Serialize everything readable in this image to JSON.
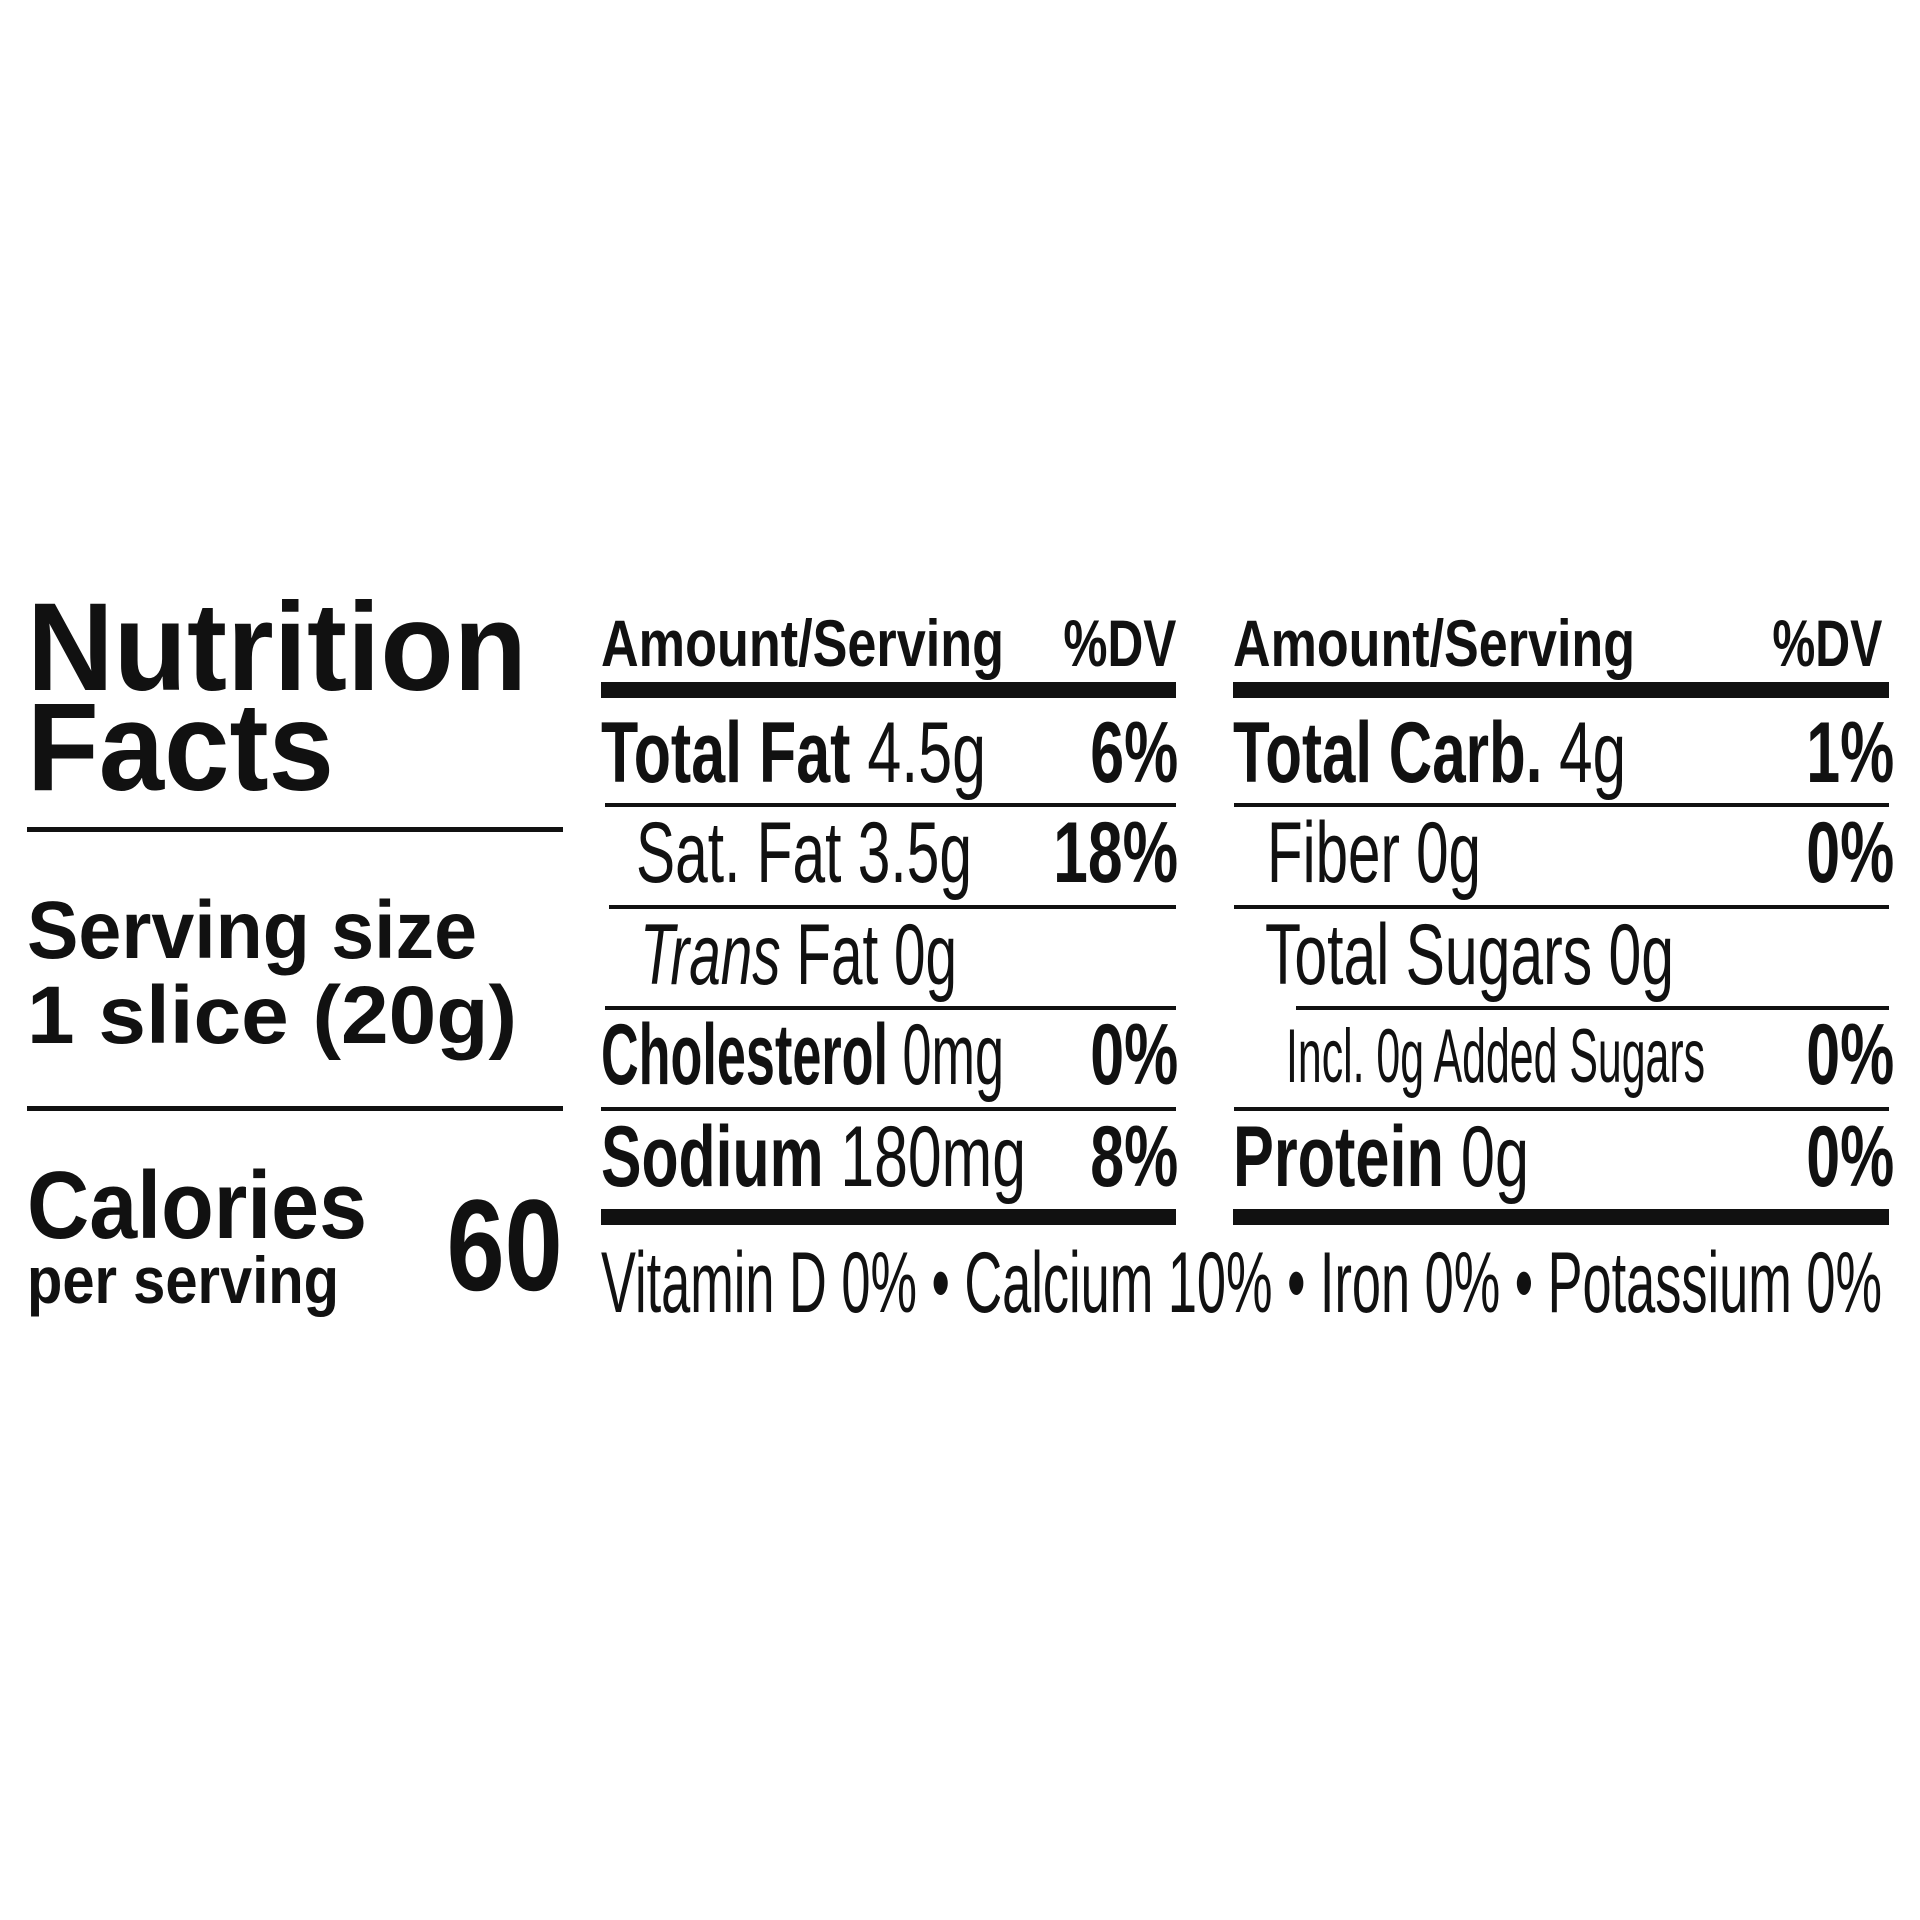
{
  "title": {
    "line1": "Nutrition",
    "line2": "Facts"
  },
  "serving": {
    "label": "Serving size",
    "value": "1 slice (20g)"
  },
  "calories": {
    "label": "Calories",
    "sublabel": "per serving",
    "value": "60"
  },
  "left_table": {
    "header": {
      "amount": "Amount/Serving",
      "dv": "%DV"
    },
    "rows": [
      {
        "name": "Total Fat",
        "amount": "4.5g",
        "dv": "6%"
      },
      {
        "name": "Sat. Fat",
        "amount": "3.5g",
        "dv": "18%"
      },
      {
        "name_italic": "Trans",
        "name": "Fat",
        "amount": "0g",
        "dv": ""
      },
      {
        "name": "Cholesterol",
        "amount": "0mg",
        "dv": "0%"
      },
      {
        "name": "Sodium",
        "amount": "180mg",
        "dv": "8%"
      }
    ]
  },
  "right_table": {
    "header": {
      "amount": "Amount/Serving",
      "dv": "%DV"
    },
    "rows": [
      {
        "name": "Total Carb.",
        "amount": "4g",
        "dv": "1%"
      },
      {
        "name": "Fiber",
        "amount": "0g",
        "dv": "0%"
      },
      {
        "name": "Total Sugars",
        "amount": "0g",
        "dv": ""
      },
      {
        "name": "Incl. 0g Added Sugars",
        "amount": "",
        "dv": "0%"
      },
      {
        "name": "Protein",
        "amount": "0g",
        "dv": "0%"
      }
    ]
  },
  "footer": {
    "vitamins": "Vitamin D 0% • Calcium 10% • Iron 0% • Potassium 0%"
  }
}
